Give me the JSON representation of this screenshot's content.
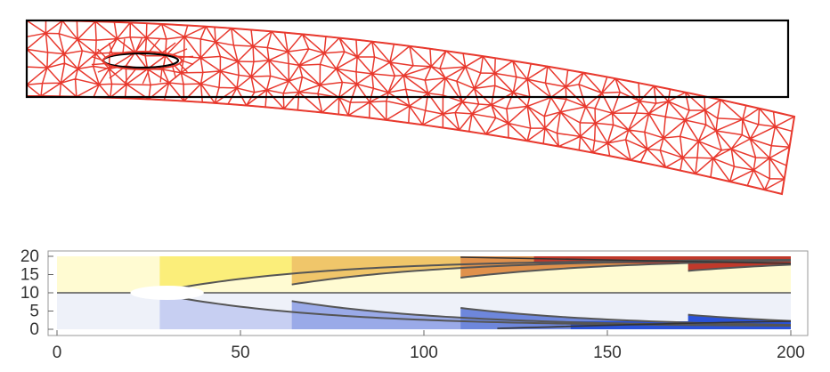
{
  "mesh_figure": {
    "colors": {
      "undeformed_outline": "#000000",
      "deformed_mesh": "#e8392e"
    }
  },
  "contour_plot": {
    "x_ticks": [
      "0",
      "50",
      "100",
      "150",
      "200"
    ],
    "y_ticks": [
      "0",
      "5",
      "10",
      "15",
      "20"
    ],
    "colors": {
      "frame": "#999999",
      "contour_line": "#555555",
      "band_top": [
        "#fffbd2",
        "#fbee7a",
        "#f0c66a",
        "#e0914c",
        "#c0392b"
      ],
      "band_bottom": [
        "#eef1f9",
        "#c7cff2",
        "#9aaae8",
        "#6e87dc",
        "#2a52d9"
      ],
      "hole": "#ffffff"
    }
  },
  "chart_data": {
    "type": "heatmap",
    "x_axis": {
      "range": [
        0,
        200
      ],
      "ticks": [
        0,
        50,
        100,
        150,
        200
      ]
    },
    "y_axis": {
      "range": [
        0,
        20
      ],
      "ticks": [
        0,
        5,
        10,
        15,
        20
      ]
    },
    "contour_levels": 5,
    "hole": {
      "center": [
        30,
        10
      ],
      "semi_axes": [
        10,
        1
      ]
    },
    "grid": false
  }
}
